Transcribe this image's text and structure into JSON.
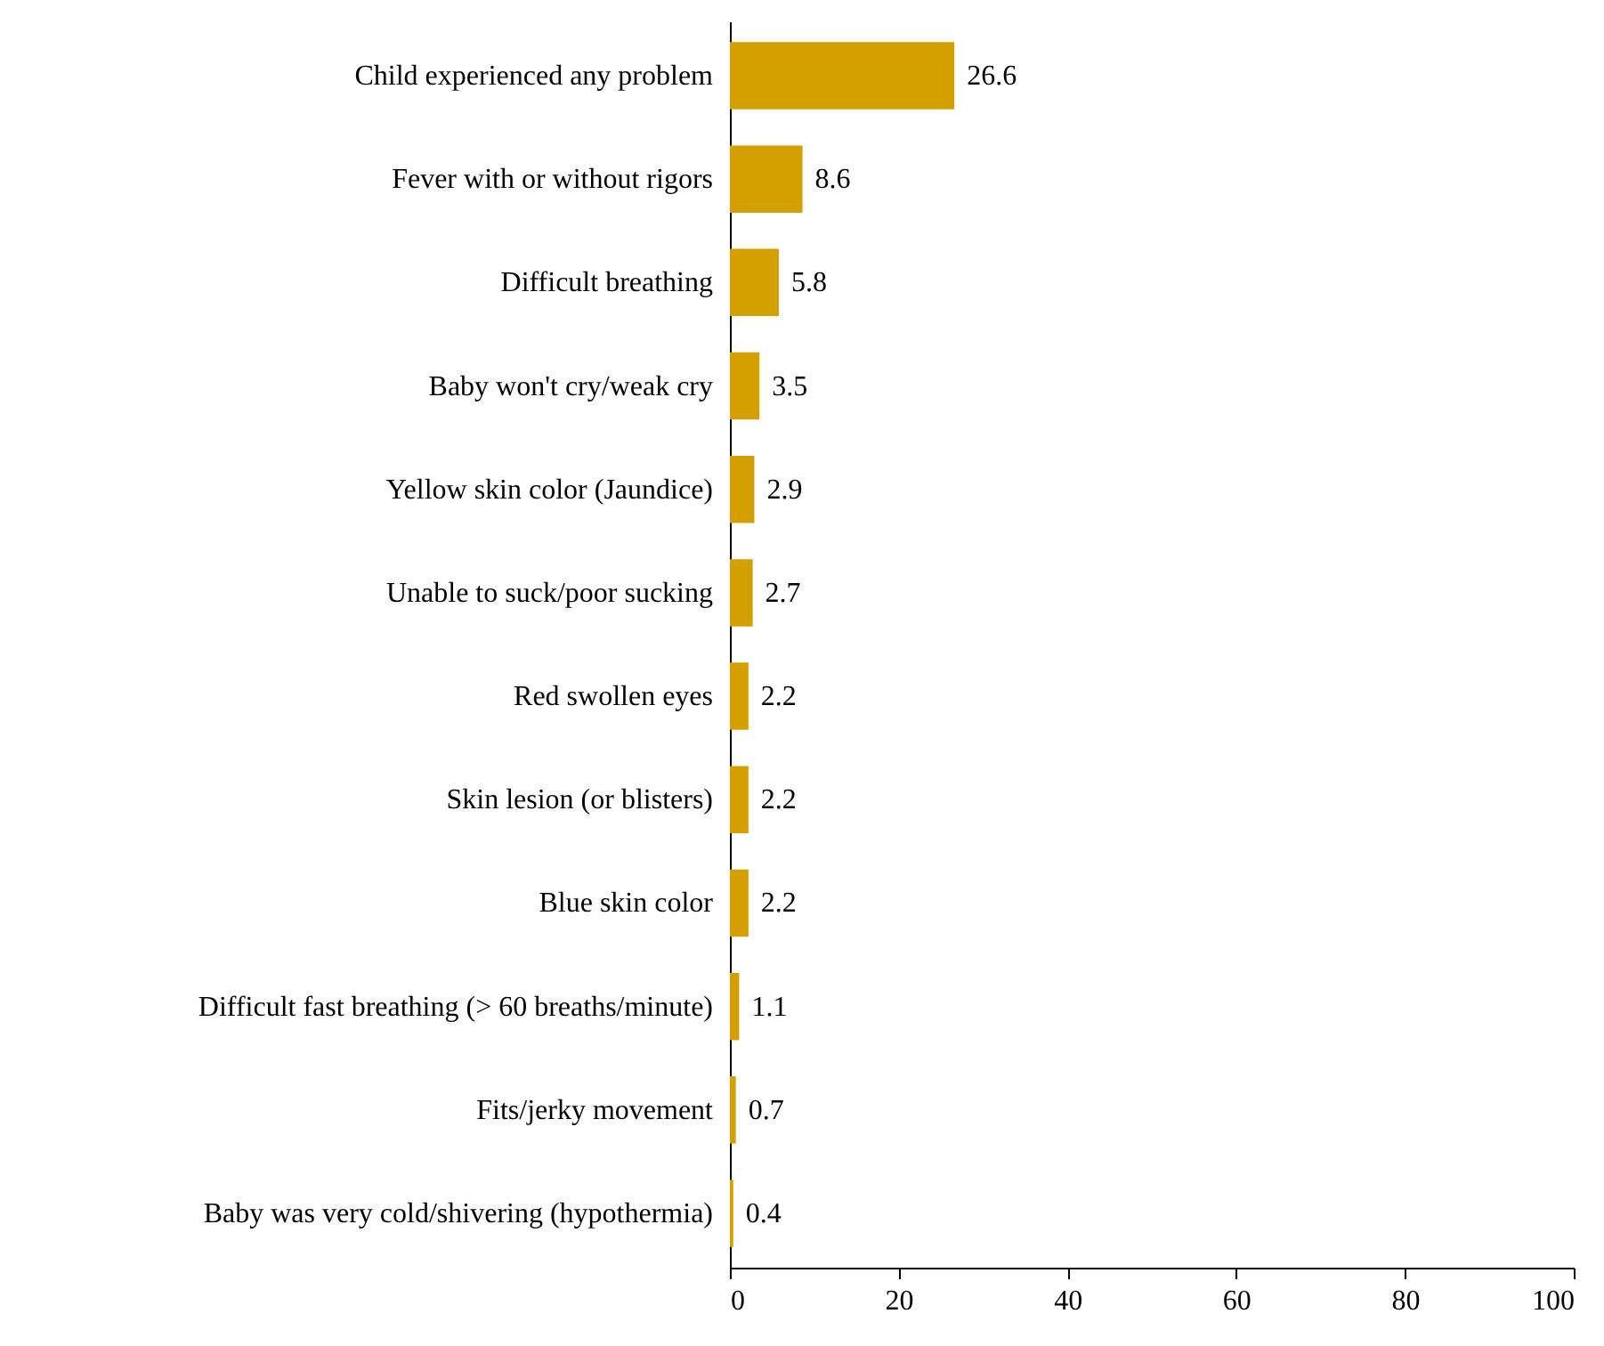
{
  "chart_data": {
    "type": "bar",
    "orientation": "horizontal",
    "categories": [
      "Child experienced any problem",
      "Fever with or without rigors",
      "Difficult breathing",
      "Baby won't cry/weak cry",
      "Yellow skin color (Jaundice)",
      "Unable to suck/poor sucking",
      "Red swollen eyes",
      "Skin lesion (or blisters)",
      "Blue skin color",
      "Difficult fast breathing (> 60 breaths/minute)",
      "Fits/jerky movement",
      "Baby was very cold/shivering (hypothermia)"
    ],
    "values": [
      26.6,
      8.6,
      5.8,
      3.5,
      2.9,
      2.7,
      2.2,
      2.2,
      2.2,
      1.1,
      0.7,
      0.4
    ],
    "color": "#d4a000",
    "xlim": [
      0,
      100
    ],
    "xticks": [
      0,
      20,
      40,
      60,
      80,
      100
    ],
    "data_labels": true,
    "grid": false
  }
}
